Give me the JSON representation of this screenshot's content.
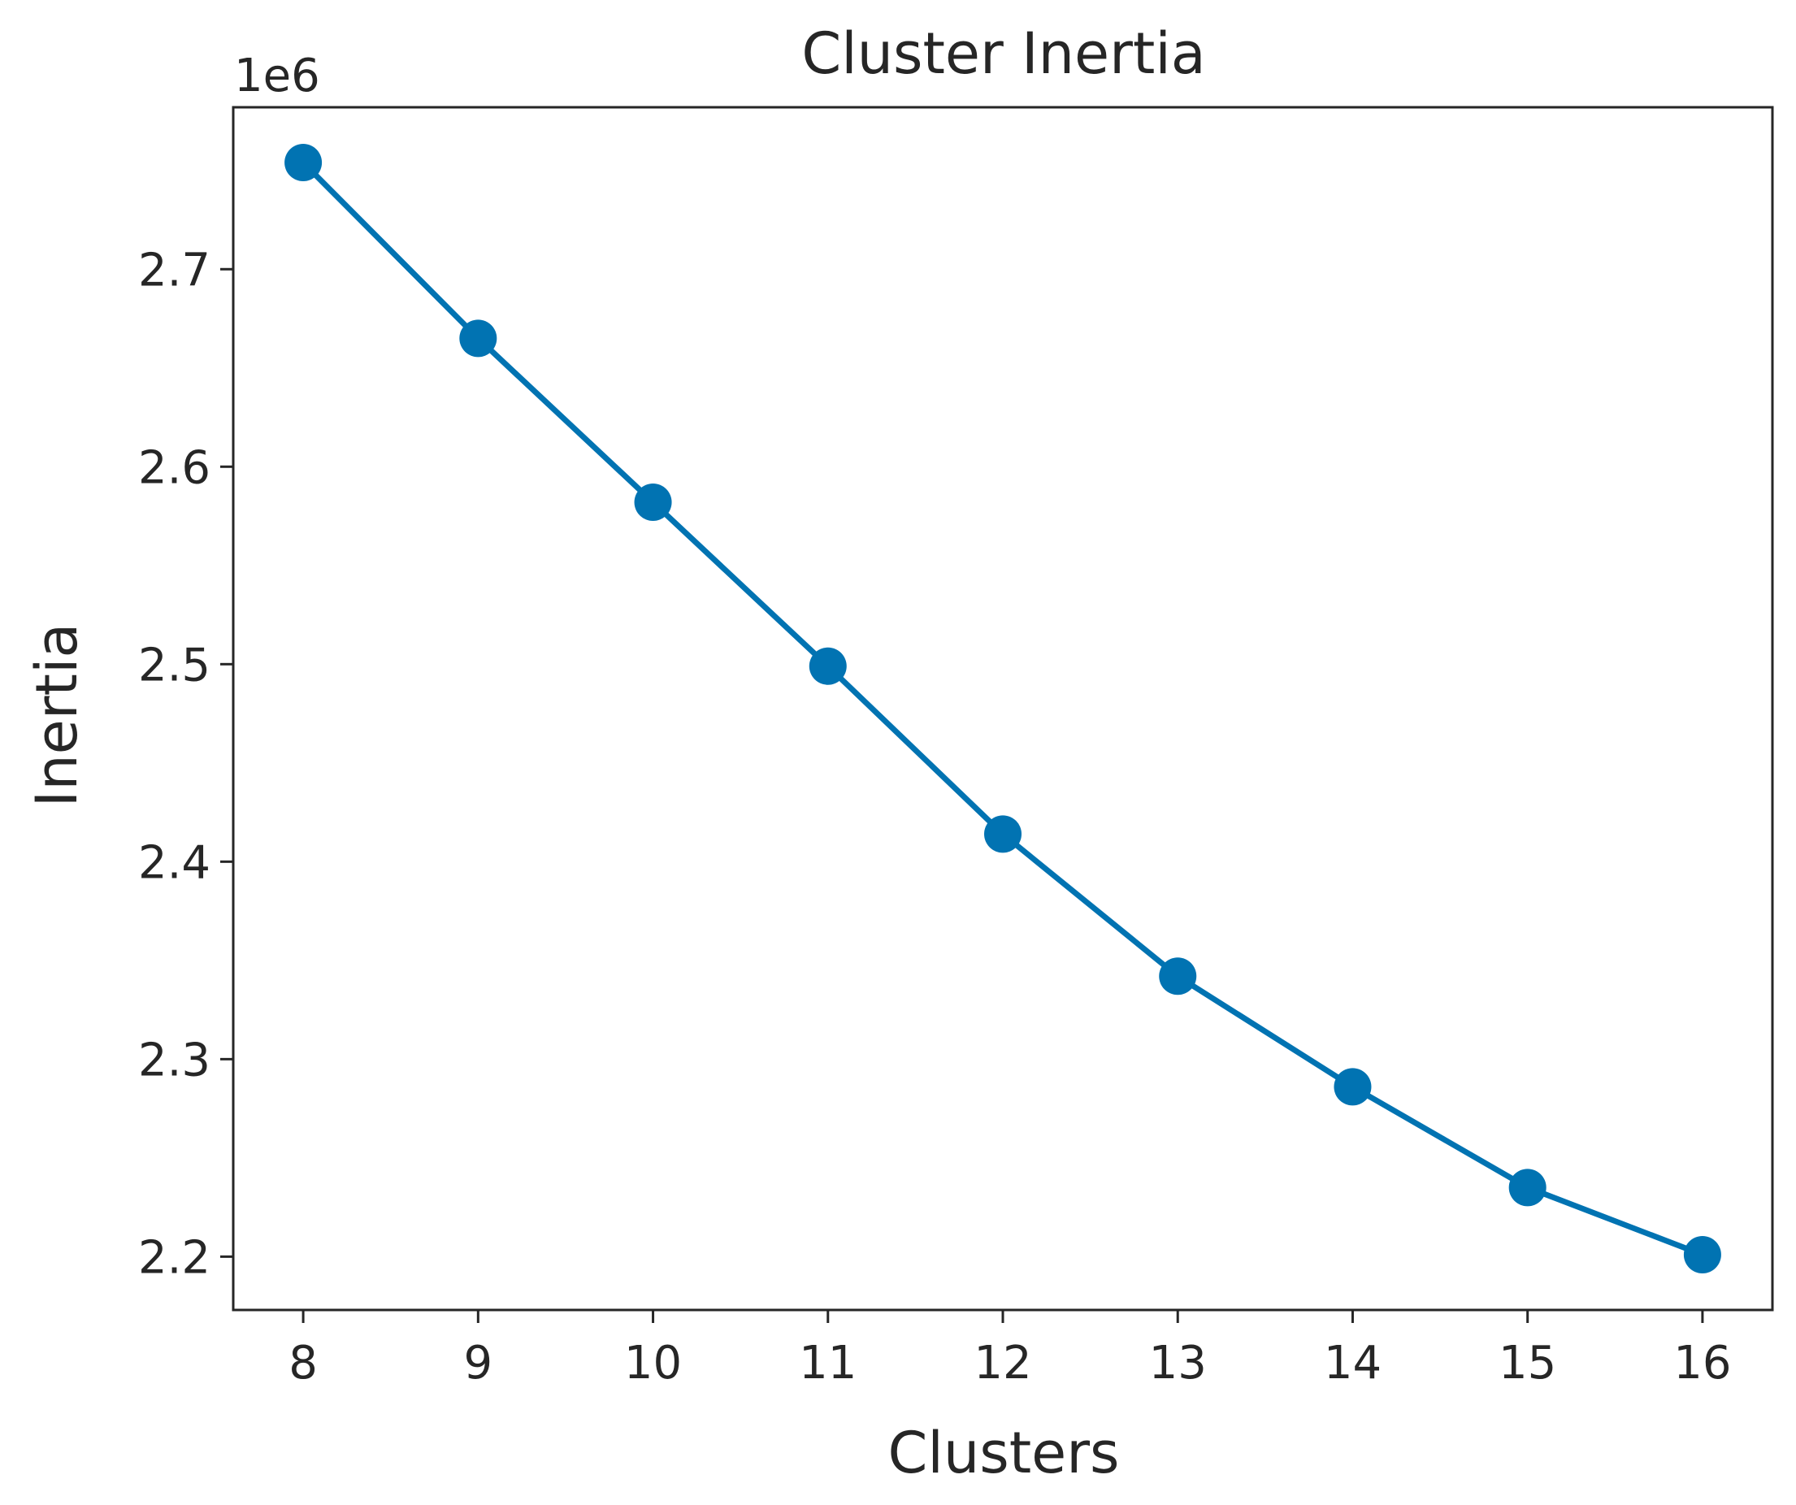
{
  "chart_data": {
    "type": "line",
    "title": "Cluster Inertia",
    "xlabel": "Clusters",
    "ylabel": "Inertia",
    "y_offset_label": "1e6",
    "x": [
      8,
      9,
      10,
      11,
      12,
      13,
      14,
      15,
      16
    ],
    "x_ticks": [
      "8",
      "9",
      "10",
      "11",
      "12",
      "13",
      "14",
      "15",
      "16"
    ],
    "xlim": [
      7.6,
      16.4
    ],
    "y_ticks": [
      2.2,
      2.3,
      2.4,
      2.5,
      2.6,
      2.7
    ],
    "y_tick_labels": [
      "2.2",
      "2.3",
      "2.4",
      "2.5",
      "2.6",
      "2.7"
    ],
    "ylim": [
      2.173,
      2.782
    ],
    "y_unit_multiplier": 1000000,
    "series": [
      {
        "values": [
          2.754,
          2.665,
          2.582,
          2.499,
          2.414,
          2.342,
          2.286,
          2.235,
          2.201
        ],
        "color": "#0173B2",
        "marker": "circle"
      }
    ],
    "grid": false,
    "legend": "none"
  }
}
